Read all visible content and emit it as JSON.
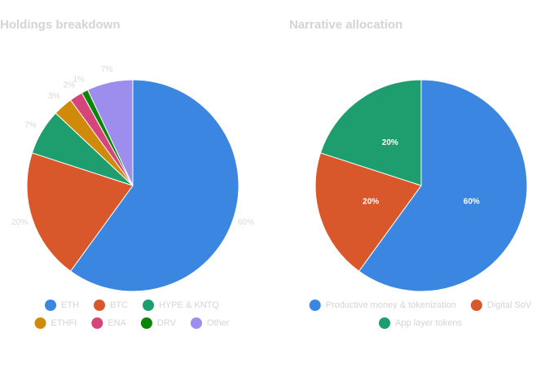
{
  "chart_data": [
    {
      "type": "pie",
      "title": "Holdings breakdown",
      "categories": [
        "ETH",
        "BTC",
        "HYPE & KNTQ",
        "ETHFI",
        "ENA",
        "DRV",
        "Other"
      ],
      "values": [
        60,
        20,
        7,
        3,
        2,
        1,
        7
      ],
      "value_labels": [
        "60%",
        "20%",
        "7%",
        "3%",
        "2%",
        "1%",
        "7%"
      ],
      "colors": [
        "#3a86e0",
        "#d9582b",
        "#1e9e6e",
        "#d08a0a",
        "#d6457a",
        "#0b860b",
        "#9d8ded"
      ]
    },
    {
      "type": "pie",
      "title": "Narrative allocation",
      "categories": [
        "Productive money & tokenization",
        "Digital SoV",
        "App layer tokens"
      ],
      "values": [
        60,
        20,
        20
      ],
      "value_labels": [
        "60%",
        "20%",
        "20%"
      ],
      "colors": [
        "#3a86e0",
        "#d9582b",
        "#1e9e6e"
      ]
    }
  ]
}
